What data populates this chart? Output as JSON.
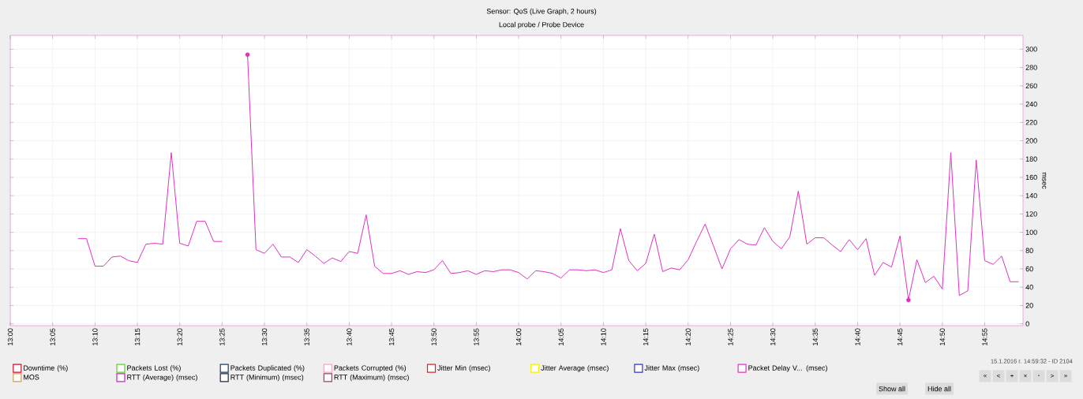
{
  "chart_data": {
    "type": "line",
    "title": "Sensor: QoS (Live Graph, 2 hours)",
    "subtitle": "Local probe / Probe Device",
    "ylabel": "msec",
    "xlim": [
      13.0,
      14.992
    ],
    "ylim": [
      -2,
      315
    ],
    "xticks": [
      {
        "value": 13.0,
        "label": "13:00"
      },
      {
        "value": 13.0833,
        "label": "13:05"
      },
      {
        "value": 13.1667,
        "label": "13:10"
      },
      {
        "value": 13.25,
        "label": "13:15"
      },
      {
        "value": 13.3333,
        "label": "13:20"
      },
      {
        "value": 13.4167,
        "label": "13:25"
      },
      {
        "value": 13.5,
        "label": "13:30"
      },
      {
        "value": 13.5833,
        "label": "13:35"
      },
      {
        "value": 13.6667,
        "label": "13:40"
      },
      {
        "value": 13.75,
        "label": "13:45"
      },
      {
        "value": 13.8333,
        "label": "13:50"
      },
      {
        "value": 13.9167,
        "label": "13:55"
      },
      {
        "value": 14.0,
        "label": "14:00"
      },
      {
        "value": 14.0833,
        "label": "14:05"
      },
      {
        "value": 14.1667,
        "label": "14:10"
      },
      {
        "value": 14.25,
        "label": "14:15"
      },
      {
        "value": 14.3333,
        "label": "14:20"
      },
      {
        "value": 14.4167,
        "label": "14:25"
      },
      {
        "value": 14.5,
        "label": "14:30"
      },
      {
        "value": 14.5833,
        "label": "14:35"
      },
      {
        "value": 14.6667,
        "label": "14:40"
      },
      {
        "value": 14.75,
        "label": "14:45"
      },
      {
        "value": 14.8333,
        "label": "14:50"
      },
      {
        "value": 14.9167,
        "label": "14:55"
      }
    ],
    "yticks": [
      0,
      20,
      40,
      60,
      80,
      100,
      120,
      140,
      160,
      180,
      200,
      220,
      240,
      260,
      280,
      300
    ],
    "grid": true,
    "legend": "bottom",
    "marker": "none",
    "line_style": "solid",
    "x": [
      13.1333,
      13.15,
      13.1667,
      13.1833,
      13.2,
      13.2167,
      13.2333,
      13.25,
      13.2667,
      13.2833,
      13.3,
      13.3167,
      13.3333,
      13.35,
      13.3667,
      13.3833,
      13.4,
      13.4167,
      13.4333,
      13.45,
      13.4667,
      13.4833,
      13.5,
      13.5167,
      13.5333,
      13.55,
      13.5667,
      13.5833,
      13.6,
      13.6167,
      13.6333,
      13.65,
      13.6667,
      13.6833,
      13.7,
      13.7167,
      13.7333,
      13.75,
      13.7667,
      13.7833,
      13.8,
      13.8167,
      13.8333,
      13.85,
      13.8667,
      13.8833,
      13.9,
      13.9167,
      13.9333,
      13.95,
      13.9667,
      13.9833,
      14.0,
      14.0167,
      14.0333,
      14.05,
      14.0667,
      14.0833,
      14.1,
      14.1167,
      14.1333,
      14.15,
      14.1667,
      14.1833,
      14.2,
      14.2167,
      14.2333,
      14.25,
      14.2667,
      14.2833,
      14.3,
      14.3167,
      14.3333,
      14.35,
      14.3667,
      14.3833,
      14.4,
      14.4167,
      14.4333,
      14.45,
      14.4667,
      14.4833,
      14.5,
      14.5167,
      14.5333,
      14.55,
      14.5667,
      14.5833,
      14.6,
      14.6167,
      14.6333,
      14.65,
      14.6667,
      14.6833,
      14.7,
      14.7167,
      14.7333,
      14.75,
      14.7667,
      14.7833,
      14.8,
      14.8167,
      14.8333,
      14.85,
      14.8667,
      14.8833,
      14.9,
      14.9167,
      14.9333,
      14.95,
      14.9667,
      14.9833
    ],
    "series": [
      {
        "name": "Downtime (%)",
        "color": "#c8102e",
        "values": [
          null,
          null,
          null,
          null,
          null,
          null,
          null,
          null,
          null,
          null,
          null,
          null,
          null,
          null,
          null,
          null,
          null,
          null,
          null,
          null,
          null,
          null,
          null,
          null,
          null,
          null,
          null,
          null,
          null,
          null,
          null,
          null,
          null,
          null,
          null,
          null,
          null,
          null,
          null,
          null,
          null,
          null,
          null,
          null,
          null,
          null,
          null,
          null,
          null,
          null,
          null,
          null,
          null,
          null,
          null,
          null,
          null,
          null,
          null,
          null,
          null,
          null,
          null,
          null,
          null,
          null,
          null,
          null,
          null,
          null,
          null,
          null,
          null,
          null,
          null,
          null,
          null,
          null,
          null,
          null,
          null,
          null,
          null,
          null,
          null,
          null,
          null,
          null,
          null,
          null,
          null,
          null,
          null,
          null,
          null,
          null,
          null,
          null,
          null,
          null,
          null,
          null,
          null,
          null,
          null,
          null,
          null,
          null,
          null,
          null,
          null,
          null
        ]
      },
      {
        "name": "Packets Lost (%)",
        "color": "#66cc33",
        "values": [
          null,
          null,
          null,
          null,
          null,
          null,
          null,
          null,
          null,
          null,
          null,
          null,
          null,
          null,
          null,
          null,
          null,
          null,
          null,
          null,
          null,
          null,
          null,
          null,
          null,
          null,
          null,
          null,
          null,
          null,
          null,
          null,
          null,
          null,
          null,
          null,
          null,
          null,
          null,
          null,
          null,
          null,
          null,
          null,
          null,
          null,
          null,
          null,
          null,
          null,
          null,
          null,
          null,
          null,
          null,
          null,
          null,
          null,
          null,
          null,
          null,
          null,
          null,
          null,
          null,
          null,
          null,
          null,
          null,
          null,
          null,
          null,
          null,
          null,
          null,
          null,
          null,
          null,
          null,
          null,
          null,
          null,
          null,
          null,
          null,
          null,
          null,
          null,
          null,
          null,
          null,
          null,
          null,
          null,
          null,
          null,
          null,
          null,
          null,
          null,
          null,
          null,
          null,
          null,
          null,
          null,
          null,
          null,
          null,
          null,
          null,
          null
        ]
      },
      {
        "name": "Packets Duplicated (%)",
        "color": "#1f3a5f",
        "values": [
          null,
          null,
          null,
          null,
          null,
          null,
          null,
          null,
          null,
          null,
          null,
          null,
          null,
          null,
          null,
          null,
          null,
          null,
          null,
          null,
          null,
          null,
          null,
          null,
          null,
          null,
          null,
          null,
          null,
          null,
          null,
          null,
          null,
          null,
          null,
          null,
          null,
          null,
          null,
          null,
          null,
          null,
          null,
          null,
          null,
          null,
          null,
          null,
          null,
          null,
          null,
          null,
          null,
          null,
          null,
          null,
          null,
          null,
          null,
          null,
          null,
          null,
          null,
          null,
          null,
          null,
          null,
          null,
          null,
          null,
          null,
          null,
          null,
          null,
          null,
          null,
          null,
          null,
          null,
          null,
          null,
          null,
          null,
          null,
          null,
          null,
          null,
          null,
          null,
          null,
          null,
          null,
          null,
          null,
          null,
          null,
          null,
          null,
          null,
          null,
          null,
          null,
          null,
          null,
          null,
          null,
          null,
          null,
          null,
          null,
          null,
          null
        ]
      },
      {
        "name": "Packets Corrupted (%)",
        "color": "#f4a6c0",
        "values": [
          null,
          null,
          null,
          null,
          null,
          null,
          null,
          null,
          null,
          null,
          null,
          null,
          null,
          null,
          null,
          null,
          null,
          null,
          null,
          null,
          null,
          null,
          null,
          null,
          null,
          null,
          null,
          null,
          null,
          null,
          null,
          null,
          null,
          null,
          null,
          null,
          null,
          null,
          null,
          null,
          null,
          null,
          null,
          null,
          null,
          null,
          null,
          null,
          null,
          null,
          null,
          null,
          null,
          null,
          null,
          null,
          null,
          null,
          null,
          null,
          null,
          null,
          null,
          null,
          null,
          null,
          null,
          null,
          null,
          null,
          null,
          null,
          null,
          null,
          null,
          null,
          null,
          null,
          null,
          null,
          null,
          null,
          null,
          null,
          null,
          null,
          null,
          null,
          null,
          null,
          null,
          null,
          null,
          null,
          null,
          null,
          null,
          null,
          null,
          null,
          null,
          null,
          null,
          null,
          null,
          null,
          null,
          null,
          null,
          null,
          null,
          null
        ]
      },
      {
        "name": "Jitter Min (msec)",
        "color": "#d62728",
        "values": [
          null,
          null,
          null,
          null,
          null,
          null,
          null,
          null,
          null,
          null,
          null,
          null,
          null,
          null,
          null,
          null,
          null,
          null,
          null,
          null,
          null,
          null,
          null,
          null,
          null,
          null,
          null,
          null,
          null,
          null,
          null,
          null,
          null,
          null,
          null,
          null,
          null,
          null,
          null,
          null,
          null,
          null,
          null,
          null,
          null,
          null,
          null,
          null,
          null,
          null,
          null,
          null,
          null,
          null,
          null,
          null,
          null,
          null,
          null,
          null,
          null,
          null,
          null,
          null,
          null,
          null,
          null,
          null,
          null,
          null,
          null,
          null,
          null,
          null,
          null,
          null,
          null,
          null,
          null,
          null,
          null,
          null,
          null,
          null,
          null,
          null,
          null,
          null,
          null,
          null,
          null,
          null,
          null,
          null,
          null,
          null,
          null,
          null,
          null,
          null,
          null,
          null,
          null,
          null,
          null,
          null,
          null,
          null,
          null,
          null,
          null,
          null
        ]
      },
      {
        "name": "Jitter Average (msec)",
        "color": "#f2f200",
        "values": [
          null,
          null,
          null,
          null,
          null,
          null,
          null,
          null,
          null,
          null,
          null,
          null,
          null,
          null,
          null,
          null,
          null,
          null,
          null,
          null,
          null,
          null,
          null,
          null,
          null,
          null,
          null,
          null,
          null,
          null,
          null,
          null,
          null,
          null,
          null,
          null,
          null,
          null,
          null,
          null,
          null,
          null,
          null,
          null,
          null,
          null,
          null,
          null,
          null,
          null,
          null,
          null,
          null,
          null,
          null,
          null,
          null,
          null,
          null,
          null,
          null,
          null,
          null,
          null,
          null,
          null,
          null,
          null,
          null,
          null,
          null,
          null,
          null,
          null,
          null,
          null,
          null,
          null,
          null,
          null,
          null,
          null,
          null,
          null,
          null,
          null,
          null,
          null,
          null,
          null,
          null,
          null,
          null,
          null,
          null,
          null,
          null,
          null,
          null,
          null,
          null,
          null,
          null,
          null,
          null,
          null,
          null,
          null,
          null,
          null,
          null,
          null
        ]
      },
      {
        "name": "Jitter Max (msec)",
        "color": "#3333cc",
        "values": [
          null,
          null,
          null,
          null,
          null,
          null,
          null,
          null,
          null,
          null,
          null,
          null,
          null,
          null,
          null,
          null,
          null,
          null,
          null,
          null,
          null,
          null,
          null,
          null,
          null,
          null,
          null,
          null,
          null,
          null,
          null,
          null,
          null,
          null,
          null,
          null,
          null,
          null,
          null,
          null,
          null,
          null,
          null,
          null,
          null,
          null,
          null,
          null,
          null,
          null,
          null,
          null,
          null,
          null,
          null,
          null,
          null,
          null,
          null,
          null,
          null,
          null,
          null,
          null,
          null,
          null,
          null,
          null,
          null,
          null,
          null,
          null,
          null,
          null,
          null,
          null,
          null,
          null,
          null,
          null,
          null,
          null,
          null,
          null,
          null,
          null,
          null,
          null,
          null,
          null,
          null,
          null,
          null,
          null,
          null,
          null,
          null,
          null,
          null,
          null,
          null,
          null,
          null,
          null,
          null,
          null,
          null,
          null,
          null,
          null,
          null,
          null
        ]
      },
      {
        "name": "Packet Delay V... (msec)",
        "color": "#e030c0",
        "values": [
          93,
          93,
          63,
          63,
          73,
          74,
          69,
          67,
          87,
          88,
          87,
          187,
          88,
          85,
          112,
          112,
          90,
          90,
          null,
          null,
          294,
          81,
          77,
          87,
          73,
          73,
          67,
          81,
          74,
          66,
          72,
          68,
          79,
          77,
          119,
          63,
          55,
          55,
          58,
          54,
          57,
          56,
          59,
          69,
          55,
          56,
          58,
          54,
          58,
          57,
          59,
          59,
          56,
          49,
          58,
          57,
          55,
          50,
          59,
          59,
          58,
          59,
          56,
          59,
          104,
          69,
          58,
          66,
          98,
          57,
          61,
          59,
          70,
          90,
          109,
          85,
          60,
          82,
          92,
          87,
          86,
          105,
          90,
          82,
          95,
          145,
          87,
          94,
          94,
          86,
          79,
          92,
          81,
          93,
          53,
          67,
          62,
          96,
          26,
          70,
          45,
          52,
          38,
          187,
          31,
          36,
          179,
          69,
          65,
          74,
          46,
          46
        ]
      },
      {
        "name": "MOS",
        "color": "#c8a060",
        "values": [
          null,
          null,
          null,
          null,
          null,
          null,
          null,
          null,
          null,
          null,
          null,
          null,
          null,
          null,
          null,
          null,
          null,
          null,
          null,
          null,
          null,
          null,
          null,
          null,
          null,
          null,
          null,
          null,
          null,
          null,
          null,
          null,
          null,
          null,
          null,
          null,
          null,
          null,
          null,
          null,
          null,
          null,
          null,
          null,
          null,
          null,
          null,
          null,
          null,
          null,
          null,
          null,
          null,
          null,
          null,
          null,
          null,
          null,
          null,
          null,
          null,
          null,
          null,
          null,
          null,
          null,
          null,
          null,
          null,
          null,
          null,
          null,
          null,
          null,
          null,
          null,
          null,
          null,
          null,
          null,
          null,
          null,
          null,
          null,
          null,
          null,
          null,
          null,
          null,
          null,
          null,
          null,
          null,
          null,
          null,
          null,
          null,
          null,
          null,
          null,
          null,
          null,
          null,
          null,
          null,
          null,
          null,
          null,
          null,
          null,
          null,
          null
        ]
      },
      {
        "name": "RTT (Average) (msec)",
        "color": "#d020c0",
        "values": [
          null,
          null,
          null,
          null,
          null,
          null,
          null,
          null,
          null,
          null,
          null,
          null,
          null,
          null,
          null,
          null,
          null,
          null,
          null,
          null,
          null,
          null,
          null,
          null,
          null,
          null,
          null,
          null,
          null,
          null,
          null,
          null,
          null,
          null,
          null,
          null,
          null,
          null,
          null,
          null,
          null,
          null,
          null,
          null,
          null,
          null,
          null,
          null,
          null,
          null,
          null,
          null,
          null,
          null,
          null,
          null,
          null,
          null,
          null,
          null,
          null,
          null,
          null,
          null,
          null,
          null,
          null,
          null,
          null,
          null,
          null,
          null,
          null,
          null,
          null,
          null,
          null,
          null,
          null,
          null,
          null,
          null,
          null,
          null,
          null,
          null,
          null,
          null,
          null,
          null,
          null,
          null,
          null,
          null,
          null,
          null,
          null,
          null,
          null,
          null,
          null,
          null,
          null,
          null,
          null,
          null,
          null,
          null,
          null,
          null,
          null,
          null
        ]
      },
      {
        "name": "RTT (Minimum) (msec)",
        "color": "#1a2a4a",
        "values": [
          null,
          null,
          null,
          null,
          null,
          null,
          null,
          null,
          null,
          null,
          null,
          null,
          null,
          null,
          null,
          null,
          null,
          null,
          null,
          null,
          null,
          null,
          null,
          null,
          null,
          null,
          null,
          null,
          null,
          null,
          null,
          null,
          null,
          null,
          null,
          null,
          null,
          null,
          null,
          null,
          null,
          null,
          null,
          null,
          null,
          null,
          null,
          null,
          null,
          null,
          null,
          null,
          null,
          null,
          null,
          null,
          null,
          null,
          null,
          null,
          null,
          null,
          null,
          null,
          null,
          null,
          null,
          null,
          null,
          null,
          null,
          null,
          null,
          null,
          null,
          null,
          null,
          null,
          null,
          null,
          null,
          null,
          null,
          null,
          null,
          null,
          null,
          null,
          null,
          null,
          null,
          null,
          null,
          null,
          null,
          null,
          null,
          null,
          null,
          null,
          null,
          null,
          null,
          null,
          null,
          null,
          null,
          null,
          null,
          null,
          null,
          null
        ]
      },
      {
        "name": "RTT (Maximum) (msec)",
        "color": "#8b4a6a",
        "values": [
          null,
          null,
          null,
          null,
          null,
          null,
          null,
          null,
          null,
          null,
          null,
          null,
          null,
          null,
          null,
          null,
          null,
          null,
          null,
          null,
          null,
          null,
          null,
          null,
          null,
          null,
          null,
          null,
          null,
          null,
          null,
          null,
          null,
          null,
          null,
          null,
          null,
          null,
          null,
          null,
          null,
          null,
          null,
          null,
          null,
          null,
          null,
          null,
          null,
          null,
          null,
          null,
          null,
          null,
          null,
          null,
          null,
          null,
          null,
          null,
          null,
          null,
          null,
          null,
          null,
          null,
          null,
          null,
          null,
          null,
          null,
          null,
          null,
          null,
          null,
          null,
          null,
          null,
          null,
          null,
          null,
          null,
          null,
          null,
          null,
          null,
          null,
          null,
          null,
          null,
          null,
          null,
          null,
          null,
          null,
          null,
          null,
          null,
          null,
          null,
          null,
          null,
          null,
          null,
          null,
          null,
          null,
          null,
          null,
          null,
          null,
          null
        ]
      },
      {
        "type": "scatter",
        "color": "#e030c0",
        "x": [
          13.4667,
          14.7667
        ],
        "values": [
          294,
          26
        ]
      }
    ],
    "annotations": [
      "15.1.2016 г. 14:59:32 - ID 2104",
      "Show all",
      "Hide all",
      "«",
      "<",
      "+",
      "×",
      "-",
      ">",
      "»"
    ]
  }
}
